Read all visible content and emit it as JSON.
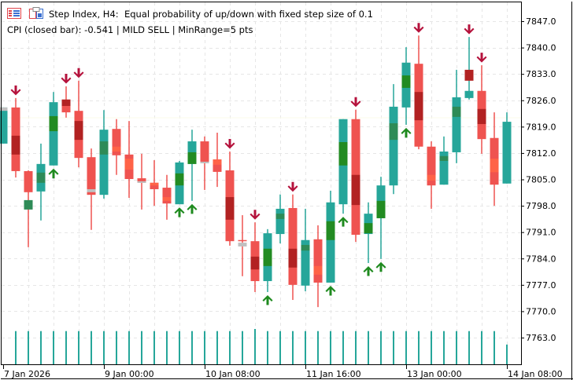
{
  "header": {
    "title": "Step Index, H4:  Equal probability of up/down with fixed step size of 0.1",
    "status": "CPI (closed bar): -0.541 | MILD SELL | MinRange=5 pts",
    "icons": [
      "indicator-list-icon",
      "template-icon"
    ]
  },
  "colors": {
    "bull": "#26a69a",
    "bear": "#ef5350",
    "darkred": "#b22222",
    "green": "#228b22",
    "darkgreen": "#2e8b57",
    "orange": "#ff6347",
    "gray": "#c0c0c0",
    "signal_down": "#b5123c",
    "signal_up": "#1e8a1e",
    "volume": "#26a69a",
    "grid": "#e6e6e6"
  },
  "chart_data": {
    "type": "candlestick",
    "symbol": "Step Index",
    "timeframe": "H4",
    "ylim": [
      7760.0,
      7849.0
    ],
    "y_ticks": [
      "7847.0",
      "7840.0",
      "7833.0",
      "7826.0",
      "7819.0",
      "7812.0",
      "7805.0",
      "7798.0",
      "7791.0",
      "7784.0",
      "7777.0",
      "7770.0",
      "7763.0"
    ],
    "x_ticks": [
      {
        "bar": 0,
        "label": "7 Jan 2026"
      },
      {
        "bar": 8,
        "label": "9 Jan 00:00"
      },
      {
        "bar": 16,
        "label": "10 Jan 08:00"
      },
      {
        "bar": 24,
        "label": "11 Jan 16:00"
      },
      {
        "bar": 32,
        "label": "13 Jan 00:00"
      },
      {
        "bar": 40,
        "label": "14 Jan 08:00"
      }
    ],
    "grid": true,
    "candles": [
      {
        "o": 7814.5,
        "h": 7824.1,
        "l": 7814.5,
        "c": 7824.1,
        "band": [
          7824.1,
          7823.2,
          "gray"
        ],
        "signal": null,
        "volume": null
      },
      {
        "o": 7824.1,
        "h": 7826.6,
        "l": 7805.5,
        "c": 7807.2,
        "band": [
          7816.6,
          7811.6,
          "darkred"
        ],
        "signal": "down",
        "volume": 14400
      },
      {
        "o": 7807.2,
        "h": 7807.4,
        "l": 7787.0,
        "c": 7801.6,
        "band": [
          7799.5,
          7797.0,
          "darkgreen"
        ],
        "signal": null,
        "volume": 14400
      },
      {
        "o": 7801.8,
        "h": 7814.5,
        "l": 7794.1,
        "c": 7809.1,
        "band": [
          7806.8,
          7804.1,
          "darkgreen"
        ],
        "signal": null,
        "volume": 14400
      },
      {
        "o": 7808.7,
        "h": 7828.2,
        "l": 7808.7,
        "c": 7825.5,
        "band": [
          7821.8,
          7817.8,
          "green"
        ],
        "signal": "up",
        "volume": 14400
      },
      {
        "o": 7826.2,
        "h": 7829.7,
        "l": 7821.4,
        "c": 7822.8,
        "band": [
          7826.2,
          7824.5,
          "darkred"
        ],
        "signal": "down",
        "volume": 14400
      },
      {
        "o": 7823.2,
        "h": 7831.2,
        "l": 7808.2,
        "c": 7810.7,
        "band": [
          7820.5,
          7815.5,
          "darkred"
        ],
        "signal": "down",
        "volume": 14400
      },
      {
        "o": 7810.9,
        "h": 7813.2,
        "l": 7791.6,
        "c": 7800.9,
        "band": [
          7802.4,
          7801.6,
          "gray"
        ],
        "signal": null,
        "volume": 14400
      },
      {
        "o": 7800.9,
        "h": 7823.4,
        "l": 7799.9,
        "c": 7818.2,
        "band": [
          7815.1,
          7811.6,
          "darkgreen"
        ],
        "signal": null,
        "volume": 14400
      },
      {
        "o": 7818.4,
        "h": 7821.0,
        "l": 7806.2,
        "c": 7811.4,
        "band": [
          7813.7,
          7812.4,
          "orange"
        ],
        "signal": null,
        "volume": 14400
      },
      {
        "o": 7811.6,
        "h": 7820.5,
        "l": 7800.1,
        "c": 7805.1,
        "band": [
          7810.5,
          7807.6,
          "orange"
        ],
        "signal": null,
        "volume": 14400
      },
      {
        "o": 7805.3,
        "h": 7811.8,
        "l": 7797.0,
        "c": 7804.1,
        "band": [
          7804.5,
          7804.1,
          "gray"
        ],
        "signal": null,
        "volume": 14400
      },
      {
        "o": 7804.1,
        "h": 7810.1,
        "l": 7798.0,
        "c": 7802.4,
        "band": [
          7804.1,
          7803.4,
          "orange"
        ],
        "signal": null,
        "volume": 14400
      },
      {
        "o": 7802.8,
        "h": 7806.2,
        "l": 7794.3,
        "c": 7798.6,
        "band": [
          7800.3,
          7799.3,
          "orange"
        ],
        "signal": null,
        "volume": 14400
      },
      {
        "o": 7798.4,
        "h": 7809.9,
        "l": 7798.4,
        "c": 7809.5,
        "band": [
          7806.6,
          7803.4,
          "green"
        ],
        "signal": "up",
        "volume": 14400
      },
      {
        "o": 7809.1,
        "h": 7818.2,
        "l": 7799.3,
        "c": 7815.1,
        "band": [
          7812.2,
          7809.1,
          "green"
        ],
        "signal": "up",
        "volume": 14400
      },
      {
        "o": 7815.1,
        "h": 7816.4,
        "l": 7802.2,
        "c": 7809.3,
        "band": [
          7809.7,
          7809.3,
          "gray"
        ],
        "signal": null,
        "volume": 14400
      },
      {
        "o": 7810.3,
        "h": 7817.4,
        "l": 7803.0,
        "c": 7807.0,
        "band": [
          7810.3,
          7808.9,
          "orange"
        ],
        "signal": null,
        "volume": 14400
      },
      {
        "o": 7807.4,
        "h": 7812.4,
        "l": 7787.4,
        "c": 7788.6,
        "band": [
          7800.3,
          7794.3,
          "darkred"
        ],
        "signal": "down",
        "volume": 14400
      },
      {
        "o": 7788.9,
        "h": 7795.5,
        "l": 7779.3,
        "c": 7788.7,
        "band": [
          7788.2,
          7787.2,
          "gray"
        ],
        "signal": null,
        "volume": 14400
      },
      {
        "o": 7788.6,
        "h": 7793.6,
        "l": 7775.1,
        "c": 7778.0,
        "band": [
          7784.5,
          7781.1,
          "darkred"
        ],
        "signal": "down",
        "volume": 15300
      },
      {
        "o": 7778.0,
        "h": 7791.8,
        "l": 7775.1,
        "c": 7790.7,
        "band": [
          7786.6,
          7782.0,
          "green"
        ],
        "signal": "up",
        "volume": 14400
      },
      {
        "o": 7790.5,
        "h": 7801.0,
        "l": 7788.0,
        "c": 7797.2,
        "band": [
          7795.9,
          7794.5,
          "darkgreen"
        ],
        "signal": null,
        "volume": 14400
      },
      {
        "o": 7797.4,
        "h": 7801.0,
        "l": 7773.0,
        "c": 7777.0,
        "band": [
          7786.6,
          7781.6,
          "darkred"
        ],
        "signal": "down",
        "volume": 14400
      },
      {
        "o": 7776.8,
        "h": 7797.2,
        "l": 7775.3,
        "c": 7788.9,
        "band": [
          7787.6,
          7786.1,
          "darkgreen"
        ],
        "signal": null,
        "volume": 14400
      },
      {
        "o": 7789.1,
        "h": 7792.8,
        "l": 7771.1,
        "c": 7777.6,
        "band": [
          7782.0,
          7779.7,
          "orange"
        ],
        "signal": null,
        "volume": 14400
      },
      {
        "o": 7777.6,
        "h": 7802.0,
        "l": 7777.6,
        "c": 7798.9,
        "band": [
          7793.9,
          7788.9,
          "green"
        ],
        "signal": "up",
        "volume": 14400
      },
      {
        "o": 7798.4,
        "h": 7821.0,
        "l": 7795.9,
        "c": 7821.0,
        "band": [
          7814.9,
          7808.7,
          "green"
        ],
        "signal": "up",
        "volume": 14400
      },
      {
        "o": 7821.0,
        "h": 7823.5,
        "l": 7788.4,
        "c": 7790.3,
        "band": [
          7806.2,
          7798.2,
          "darkred"
        ],
        "signal": "down",
        "volume": 14400
      },
      {
        "o": 7790.5,
        "h": 7798.9,
        "l": 7782.8,
        "c": 7795.9,
        "band": [
          7793.4,
          7790.7,
          "green"
        ],
        "signal": "up",
        "volume": 14400
      },
      {
        "o": 7794.7,
        "h": 7805.7,
        "l": 7783.9,
        "c": 7803.4,
        "band": [
          7799.3,
          7794.7,
          "green"
        ],
        "signal": "up",
        "volume": 14400
      },
      {
        "o": 7803.4,
        "h": 7830.3,
        "l": 7801.1,
        "c": 7824.3,
        "band": [
          7819.9,
          7815.5,
          "darkgreen"
        ],
        "signal": null,
        "volume": 14400
      },
      {
        "o": 7824.1,
        "h": 7840.1,
        "l": 7819.5,
        "c": 7836.0,
        "band": [
          7832.6,
          7829.3,
          "green"
        ],
        "signal": "up",
        "volume": 14400
      },
      {
        "o": 7835.7,
        "h": 7843.2,
        "l": 7813.0,
        "c": 7813.7,
        "band": [
          7828.2,
          7820.7,
          "darkred"
        ],
        "signal": "down",
        "volume": 14400
      },
      {
        "o": 7813.7,
        "h": 7815.1,
        "l": 7797.2,
        "c": 7803.4,
        "band": [
          7806.2,
          7804.7,
          "orange"
        ],
        "signal": null,
        "volume": 14400
      },
      {
        "o": 7803.6,
        "h": 7816.4,
        "l": 7803.6,
        "c": 7812.4,
        "band": [
          7811.2,
          7809.9,
          "darkgreen"
        ],
        "signal": null,
        "volume": 14400
      },
      {
        "o": 7812.2,
        "h": 7834.1,
        "l": 7809.3,
        "c": 7826.8,
        "band": [
          7824.3,
          7821.6,
          "darkgreen"
        ],
        "signal": null,
        "volume": 14400
      },
      {
        "o": 7826.6,
        "h": 7842.8,
        "l": 7826.2,
        "c": 7828.5,
        "band": [
          7834.1,
          7831.2,
          "darkred"
        ],
        "signal": "down",
        "volume": 14400
      },
      {
        "o": 7828.5,
        "h": 7835.3,
        "l": 7811.8,
        "c": 7815.7,
        "band": [
          7823.7,
          7819.7,
          "darkred"
        ],
        "signal": "down",
        "volume": 14400
      },
      {
        "o": 7816.0,
        "h": 7822.8,
        "l": 7798.0,
        "c": 7803.6,
        "band": [
          7810.5,
          7806.9,
          "orange"
        ],
        "signal": null,
        "volume": 14400
      },
      {
        "o": 7803.9,
        "h": 7822.8,
        "l": 7803.9,
        "c": 7820.3,
        "band": null,
        "signal": null,
        "volume": 8700
      }
    ]
  }
}
